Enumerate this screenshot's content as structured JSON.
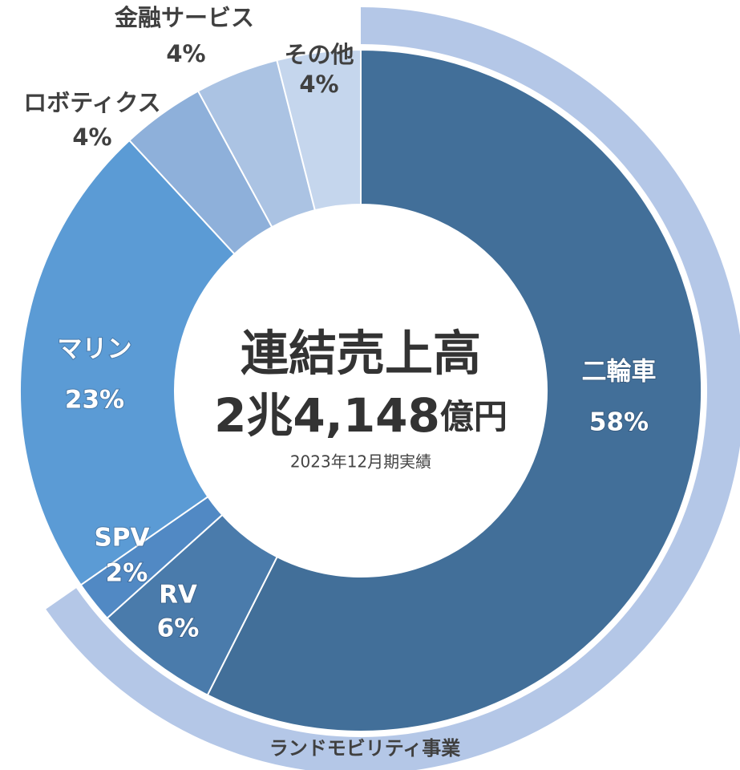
{
  "chart_data": {
    "type": "pie",
    "donut": true,
    "categories": [
      "二輪車",
      "RV",
      "SPV",
      "マリン",
      "ロボティクス",
      "金融サービス",
      "その他"
    ],
    "values": [
      58,
      6,
      2,
      23,
      4,
      4,
      4
    ],
    "value_labels": [
      "58%",
      "6%",
      "2%",
      "23%",
      "4%",
      "4%",
      "4%"
    ],
    "colors": [
      "#426f99",
      "#4a7bab",
      "#5189c4",
      "#5b9bd5",
      "#8eb0da",
      "#abc3e3",
      "#c5d6ed"
    ],
    "center_title": "連結売上高",
    "center_value": "2兆4,148",
    "center_unit": "億円",
    "center_note": "2023年12月期実績",
    "group": {
      "label": "ランドモビリティ事業",
      "categories": [
        "二輪車",
        "RV",
        "SPV"
      ],
      "color": "#b4c7e7"
    }
  }
}
